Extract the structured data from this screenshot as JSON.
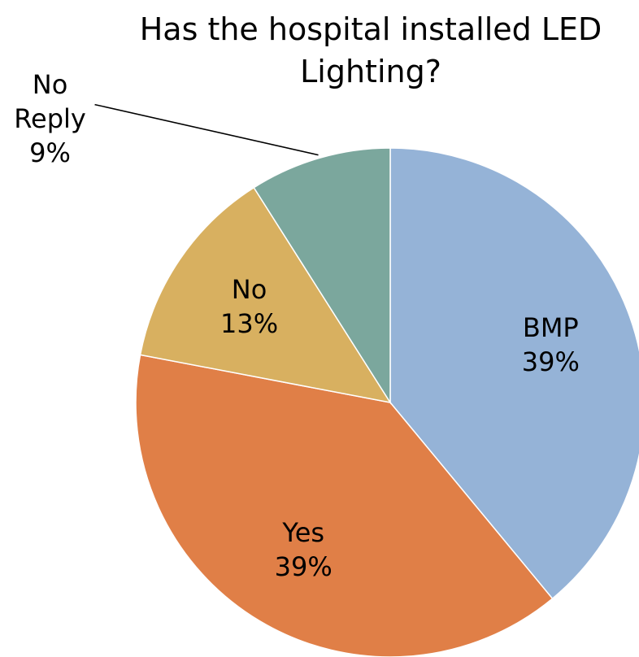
{
  "chart_data": {
    "type": "pie",
    "title": "Has the hospital installed LED Lighting?",
    "categories": [
      "BMP",
      "Yes",
      "No",
      "No Reply"
    ],
    "values": [
      39,
      39,
      13,
      9
    ],
    "value_labels": [
      "39%",
      "39%",
      "13%",
      "9%"
    ],
    "colors": [
      "#95b3d7",
      "#e07f47",
      "#d8b060",
      "#7ba79d"
    ]
  }
}
